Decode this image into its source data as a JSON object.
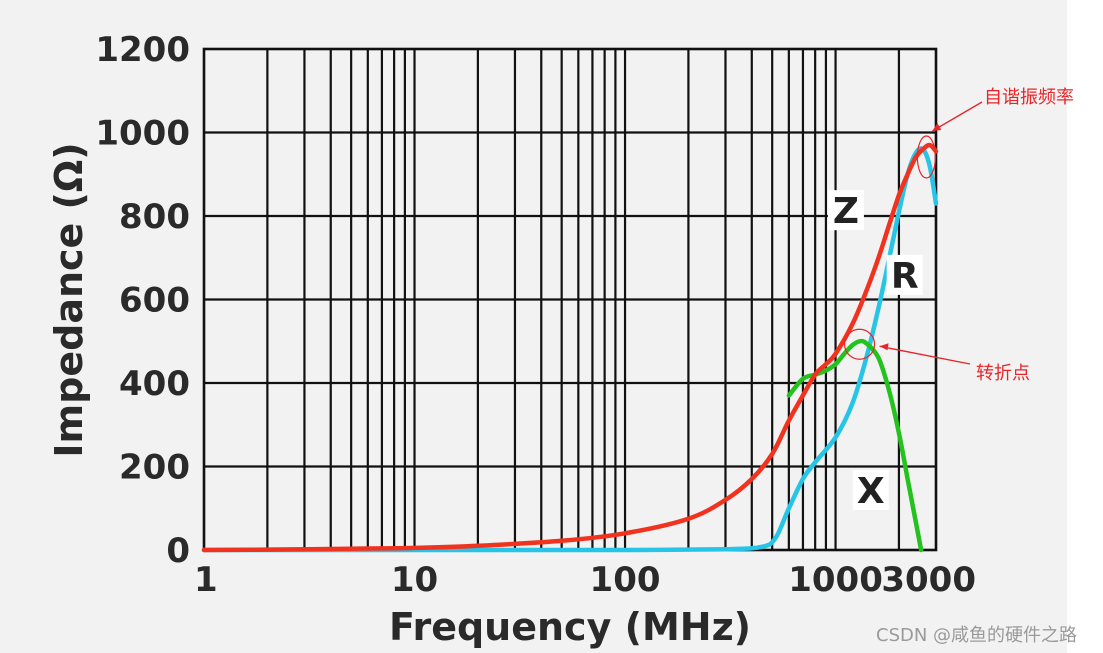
{
  "chart_data": {
    "type": "line",
    "title": "",
    "xlabel": "Frequency (MHz)",
    "ylabel": "Impedance (Ω)",
    "x_scale": "log",
    "xlim": [
      1,
      3000
    ],
    "ylim": [
      0,
      1200
    ],
    "x_ticks": [
      {
        "value": 1,
        "label": "1"
      },
      {
        "value": 10,
        "label": "10"
      },
      {
        "value": 100,
        "label": "100"
      },
      {
        "value": 1000,
        "label": "1000"
      },
      {
        "value": 3000,
        "label": "3000"
      }
    ],
    "y_ticks": [
      {
        "value": 0,
        "label": "0"
      },
      {
        "value": 200,
        "label": "200"
      },
      {
        "value": 400,
        "label": "400"
      },
      {
        "value": 600,
        "label": "600"
      },
      {
        "value": 800,
        "label": "800"
      },
      {
        "value": 1000,
        "label": "1000"
      },
      {
        "value": 1200,
        "label": "1200"
      }
    ],
    "grid": true,
    "series": [
      {
        "name": "Z",
        "color": "#f0321e",
        "points": [
          [
            1,
            0
          ],
          [
            2,
            1
          ],
          [
            5,
            3
          ],
          [
            10,
            5
          ],
          [
            20,
            10
          ],
          [
            50,
            22
          ],
          [
            100,
            40
          ],
          [
            200,
            75
          ],
          [
            300,
            120
          ],
          [
            400,
            170
          ],
          [
            500,
            230
          ],
          [
            600,
            310
          ],
          [
            700,
            370
          ],
          [
            800,
            420
          ],
          [
            900,
            445
          ],
          [
            1000,
            470
          ],
          [
            1200,
            540
          ],
          [
            1400,
            620
          ],
          [
            1600,
            700
          ],
          [
            1800,
            780
          ],
          [
            2000,
            850
          ],
          [
            2200,
            900
          ],
          [
            2400,
            940
          ],
          [
            2600,
            960
          ],
          [
            2800,
            970
          ],
          [
            3000,
            955
          ]
        ]
      },
      {
        "name": "R",
        "color": "#26c4e6",
        "points": [
          [
            1,
            0
          ],
          [
            50,
            0
          ],
          [
            100,
            0
          ],
          [
            300,
            2
          ],
          [
            450,
            8
          ],
          [
            520,
            30
          ],
          [
            600,
            100
          ],
          [
            700,
            170
          ],
          [
            800,
            210
          ],
          [
            1000,
            270
          ],
          [
            1200,
            350
          ],
          [
            1400,
            460
          ],
          [
            1600,
            580
          ],
          [
            1800,
            700
          ],
          [
            2000,
            810
          ],
          [
            2200,
            900
          ],
          [
            2400,
            950
          ],
          [
            2600,
            960
          ],
          [
            2800,
            920
          ],
          [
            3000,
            830
          ]
        ]
      },
      {
        "name": "X",
        "color": "#23c21d",
        "points": [
          [
            600,
            370
          ],
          [
            700,
            410
          ],
          [
            800,
            420
          ],
          [
            900,
            430
          ],
          [
            1000,
            445
          ],
          [
            1100,
            470
          ],
          [
            1200,
            490
          ],
          [
            1300,
            500
          ],
          [
            1400,
            495
          ],
          [
            1600,
            460
          ],
          [
            1800,
            380
          ],
          [
            2000,
            280
          ],
          [
            2200,
            170
          ],
          [
            2400,
            70
          ],
          [
            2550,
            0
          ]
        ]
      }
    ],
    "annotations": [
      {
        "text": "自谐振频率",
        "x": 2700,
        "y": 970
      },
      {
        "text": "转折点",
        "x": 1300,
        "y": 500
      }
    ]
  },
  "watermark": "CSDN @咸鱼的硬件之路"
}
